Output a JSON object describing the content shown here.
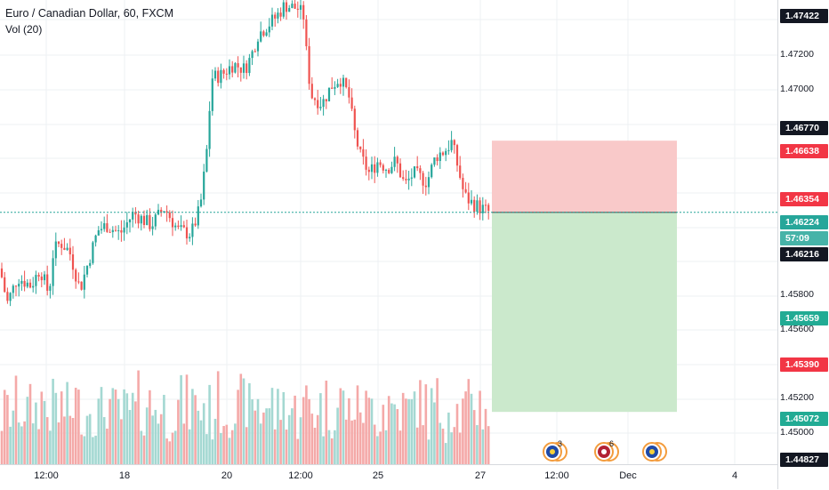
{
  "legend": {
    "symbol": "Euro / Canadian Dollar, 60, FXCM",
    "volume": "Vol (20)"
  },
  "price_axis": {
    "labels": [
      "1.47200",
      "1.47000",
      "1.45800",
      "1.45600",
      "1.45200",
      "1.45000"
    ],
    "tags": [
      {
        "text": "1.47422",
        "kind": "dark"
      },
      {
        "text": "1.46770",
        "kind": "dark"
      },
      {
        "text": "1.46638",
        "kind": "red"
      },
      {
        "text": "1.46354",
        "kind": "red"
      },
      {
        "text": "1.46224",
        "kind": "teal"
      },
      {
        "text": "57:09",
        "kind": "teal-light"
      },
      {
        "text": "1.46216",
        "kind": "dark"
      },
      {
        "text": "1.45659",
        "kind": "green"
      },
      {
        "text": "1.45390",
        "kind": "red"
      },
      {
        "text": "1.45072",
        "kind": "green"
      },
      {
        "text": "1.44827",
        "kind": "dark"
      }
    ]
  },
  "time_axis": {
    "labels": [
      "12:00",
      "18",
      "20",
      "12:00",
      "25",
      "27",
      "12:00",
      "Dec",
      "4"
    ]
  },
  "position_tool": {
    "entry": 1.46224,
    "stop": 1.46638,
    "target": 1.45072,
    "colors": {
      "risk": "#f9c9c9",
      "reward": "#cbe9cc"
    }
  },
  "events": {
    "flags": [
      {
        "icon": "eu-flag-event-icon",
        "count": "3"
      },
      {
        "icon": "us-flag-event-icon",
        "count": "6"
      },
      {
        "icon": "eu-flag-event-icon",
        "count": ""
      }
    ]
  },
  "colors": {
    "up": "#26a69a",
    "down": "#ef5350",
    "vol_up": "#a4d8d2",
    "vol_down": "#f4a9a8",
    "grid": "#eef0f3"
  },
  "chart_data": {
    "type": "candlestick",
    "title": "Euro / Canadian Dollar, 60, FXCM",
    "ylim": [
      1.4477,
      1.4745
    ],
    "x_ticks": [
      "12:00",
      "18",
      "20",
      "12:00",
      "25",
      "27",
      "12:00",
      "Dec",
      "4"
    ],
    "path": [
      [
        0,
        1.459
      ],
      [
        8,
        1.457
      ],
      [
        20,
        1.4585
      ],
      [
        35,
        1.458
      ],
      [
        45,
        1.459
      ],
      [
        55,
        1.4575
      ],
      [
        60,
        1.46
      ],
      [
        68,
        1.4605
      ],
      [
        78,
        1.46
      ],
      [
        90,
        1.4578
      ],
      [
        100,
        1.4595
      ],
      [
        110,
        1.4612
      ],
      [
        120,
        1.4615
      ],
      [
        135,
        1.461
      ],
      [
        150,
        1.4622
      ],
      [
        170,
        1.4615
      ],
      [
        185,
        1.4625
      ],
      [
        200,
        1.4612
      ],
      [
        215,
        1.461
      ],
      [
        225,
        1.4625
      ],
      [
        232,
        1.4655
      ],
      [
        238,
        1.47
      ],
      [
        250,
        1.4702
      ],
      [
        262,
        1.4708
      ],
      [
        275,
        1.4705
      ],
      [
        282,
        1.4712
      ],
      [
        290,
        1.4725
      ],
      [
        300,
        1.473
      ],
      [
        310,
        1.4735
      ],
      [
        320,
        1.4742
      ],
      [
        335,
        1.474
      ],
      [
        342,
        1.4735
      ],
      [
        345,
        1.471
      ],
      [
        350,
        1.469
      ],
      [
        362,
        1.4685
      ],
      [
        372,
        1.4695
      ],
      [
        382,
        1.47
      ],
      [
        392,
        1.469
      ],
      [
        398,
        1.467
      ],
      [
        405,
        1.4655
      ],
      [
        415,
        1.4645
      ],
      [
        425,
        1.4652
      ],
      [
        435,
        1.4648
      ],
      [
        445,
        1.4652
      ],
      [
        455,
        1.4638
      ],
      [
        465,
        1.4645
      ],
      [
        480,
        1.464
      ],
      [
        490,
        1.4655
      ],
      [
        500,
        1.4658
      ],
      [
        508,
        1.4663
      ],
      [
        515,
        1.4648
      ],
      [
        522,
        1.4632
      ],
      [
        530,
        1.4628
      ],
      [
        540,
        1.4625
      ],
      [
        552,
        1.4622
      ]
    ],
    "last_price": 1.46224
  }
}
